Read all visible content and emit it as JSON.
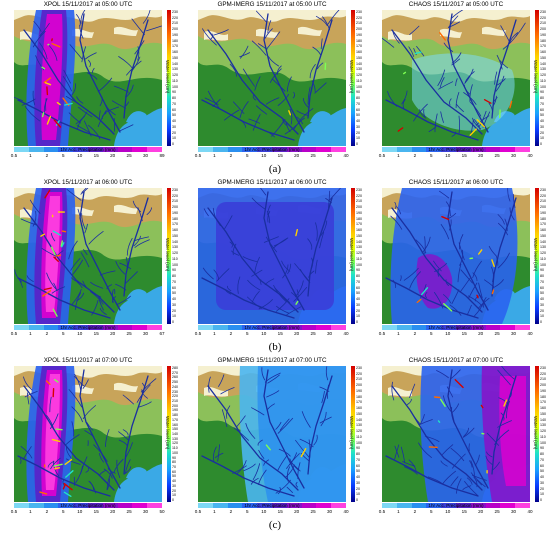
{
  "rows": [
    {
      "label": "(a)",
      "panels": [
        {
          "title": "XPOL    15/11/2017 at 05:00 UTC",
          "kind": "xpol-a",
          "wl_ticks": [
            "230",
            "220",
            "210",
            "200",
            "190",
            "180",
            "170",
            "160",
            "150",
            "140",
            "130",
            "120",
            "110",
            "100",
            "90",
            "80",
            "70",
            "60",
            "50",
            "40",
            "30",
            "20",
            "10",
            "0"
          ],
          "pr_ticks": [
            "0.5",
            "1",
            "2",
            "5",
            "10",
            "15",
            "20",
            "25",
            "30",
            "89"
          ]
        },
        {
          "title": "GPM-IMERG    15/11/2017 at 05:00 UTC",
          "kind": "gpm-a",
          "wl_ticks": [
            "230",
            "220",
            "210",
            "200",
            "190",
            "180",
            "170",
            "160",
            "150",
            "140",
            "130",
            "120",
            "110",
            "100",
            "90",
            "80",
            "70",
            "60",
            "50",
            "40",
            "30",
            "20",
            "10",
            "0"
          ],
          "pr_ticks": [
            "0.5",
            "1",
            "2",
            "5",
            "10",
            "15",
            "20",
            "25",
            "30",
            "40"
          ]
        },
        {
          "title": "CHAOS    15/11/2017 at 05:00 UTC",
          "kind": "chaos-a",
          "wl_ticks": [
            "230",
            "220",
            "210",
            "200",
            "190",
            "180",
            "170",
            "160",
            "150",
            "140",
            "130",
            "120",
            "110",
            "100",
            "90",
            "80",
            "70",
            "60",
            "50",
            "40",
            "30",
            "20",
            "10",
            "0"
          ],
          "pr_ticks": [
            "0.5",
            "1",
            "2",
            "5",
            "10",
            "15",
            "20",
            "25",
            "30",
            "40"
          ]
        }
      ]
    },
    {
      "label": "(b)",
      "panels": [
        {
          "title": "XPOL    15/11/2017 at 06:00 UTC",
          "kind": "xpol-b",
          "wl_ticks": [
            "230",
            "220",
            "210",
            "200",
            "190",
            "180",
            "170",
            "160",
            "150",
            "140",
            "130",
            "120",
            "110",
            "100",
            "90",
            "80",
            "70",
            "60",
            "50",
            "40",
            "30",
            "20",
            "10",
            "0"
          ],
          "pr_ticks": [
            "0.5",
            "1",
            "2",
            "5",
            "10",
            "15",
            "20",
            "25",
            "30",
            "67"
          ]
        },
        {
          "title": "GPM-IMERG    15/11/2017 at 06:00 UTC",
          "kind": "gpm-b",
          "wl_ticks": [
            "230",
            "220",
            "210",
            "200",
            "190",
            "180",
            "170",
            "160",
            "150",
            "140",
            "130",
            "120",
            "110",
            "100",
            "90",
            "80",
            "70",
            "60",
            "50",
            "40",
            "30",
            "20",
            "10",
            "0"
          ],
          "pr_ticks": [
            "0.5",
            "1",
            "2",
            "5",
            "10",
            "15",
            "20",
            "25",
            "30",
            "40"
          ]
        },
        {
          "title": "CHAOS    15/11/2017 at 06:00 UTC",
          "kind": "chaos-b",
          "wl_ticks": [
            "230",
            "220",
            "210",
            "200",
            "190",
            "180",
            "170",
            "160",
            "150",
            "140",
            "130",
            "120",
            "110",
            "100",
            "90",
            "80",
            "70",
            "60",
            "50",
            "40",
            "30",
            "20",
            "10",
            "0"
          ],
          "pr_ticks": [
            "0.5",
            "1",
            "2",
            "5",
            "10",
            "15",
            "20",
            "25",
            "30",
            "40"
          ]
        }
      ]
    },
    {
      "label": "(c)",
      "panels": [
        {
          "title": "XPOL    15/11/2017 at 07:00 UTC",
          "kind": "xpol-c",
          "wl_ticks": [
            "280",
            "270",
            "260",
            "250",
            "240",
            "230",
            "220",
            "210",
            "200",
            "190",
            "180",
            "170",
            "160",
            "150",
            "140",
            "130",
            "120",
            "110",
            "100",
            "90",
            "80",
            "70",
            "60",
            "50",
            "40",
            "30",
            "20",
            "10",
            "0"
          ],
          "pr_ticks": [
            "0.5",
            "1",
            "2",
            "5",
            "10",
            "15",
            "20",
            "25",
            "30",
            "50"
          ]
        },
        {
          "title": "GPM-IMERG    15/11/2017 at 07:00 UTC",
          "kind": "gpm-c",
          "wl_ticks": [
            "230",
            "220",
            "210",
            "200",
            "190",
            "180",
            "170",
            "160",
            "150",
            "140",
            "130",
            "120",
            "110",
            "100",
            "90",
            "80",
            "70",
            "60",
            "50",
            "40",
            "30",
            "20",
            "10",
            "0"
          ],
          "pr_ticks": [
            "0.5",
            "1",
            "2",
            "5",
            "10",
            "15",
            "20",
            "25",
            "30",
            "40"
          ]
        },
        {
          "title": "CHAOS    15/11/2017 at 07:00 UTC",
          "kind": "chaos-c",
          "wl_ticks": [
            "230",
            "220",
            "210",
            "200",
            "190",
            "180",
            "170",
            "160",
            "150",
            "140",
            "130",
            "120",
            "110",
            "100",
            "90",
            "80",
            "70",
            "60",
            "50",
            "40",
            "30",
            "20",
            "10",
            "0"
          ],
          "pr_ticks": [
            "0.5",
            "1",
            "2",
            "5",
            "10",
            "15",
            "20",
            "25",
            "30",
            "40"
          ]
        }
      ]
    }
  ],
  "wl_axis_label": "Water level (cm)",
  "pr_axis_label": "1hr Acc. Precipitation (mm)",
  "colors": {
    "sea": "#3aa9e6",
    "lowland": "#2e8b2e",
    "midland": "#8cc05a",
    "highland": "#c8a45a",
    "peak": "#f5f0d0",
    "river": "#1a2fa0",
    "precip_scale": [
      "#7dd8f5",
      "#4ab5ef",
      "#2a8ff0",
      "#2a63f0",
      "#3a3ed8",
      "#5a20c8",
      "#8a10c8",
      "#b800c8",
      "#e000d0",
      "#ff40e0"
    ]
  }
}
